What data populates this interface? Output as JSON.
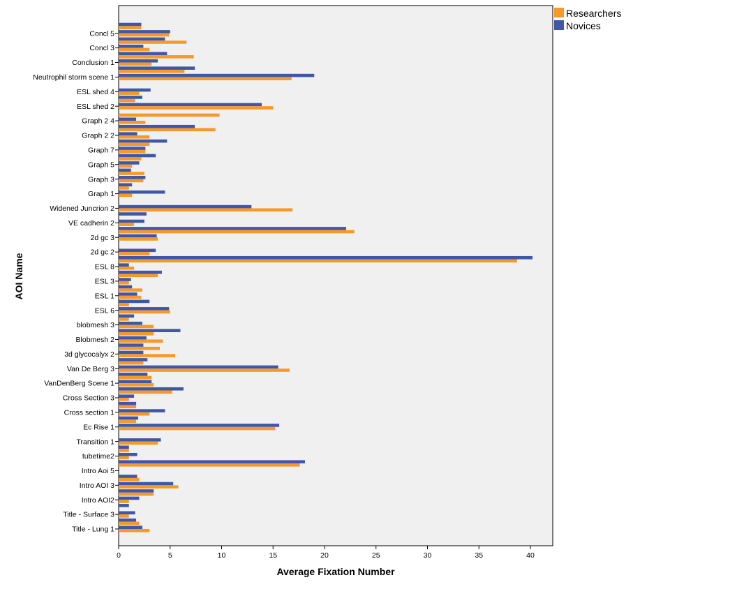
{
  "chart_data": {
    "type": "bar",
    "orientation": "horizontal",
    "xlabel": "Average Fixation Number",
    "ylabel": "AOI Name",
    "xlim": [
      0,
      42
    ],
    "xticks": [
      0,
      5,
      10,
      15,
      20,
      25,
      30,
      35,
      40
    ],
    "grid": false,
    "legend_position": "top-right",
    "series": [
      {
        "name": "Researchers",
        "color": "#F7982A"
      },
      {
        "name": "Novices",
        "color": "#3F57A6"
      }
    ],
    "rows": [
      {
        "label": "",
        "novices": 2.2,
        "researchers": 2.2
      },
      {
        "label": "Concl 5",
        "novices": 5.0,
        "researchers": 4.9
      },
      {
        "label": "",
        "novices": 4.5,
        "researchers": 6.6
      },
      {
        "label": "Concl 3",
        "novices": 2.4,
        "researchers": 3.0
      },
      {
        "label": "",
        "novices": 4.7,
        "researchers": 7.3
      },
      {
        "label": "Conclusion 1",
        "novices": 3.8,
        "researchers": 3.2
      },
      {
        "label": "",
        "novices": 7.4,
        "researchers": 6.4
      },
      {
        "label": "Neutrophil storm scene 1",
        "novices": 19.0,
        "researchers": 16.8
      },
      {
        "label": "",
        "novices": null,
        "researchers": null
      },
      {
        "label": "ESL shed 4",
        "novices": 3.1,
        "researchers": 2.0
      },
      {
        "label": "",
        "novices": 2.3,
        "researchers": 1.6
      },
      {
        "label": "ESL shed 2",
        "novices": 13.9,
        "researchers": 15.0
      },
      {
        "label": "",
        "novices": null,
        "researchers": 9.8
      },
      {
        "label": "Graph 2 4",
        "novices": 1.7,
        "researchers": 2.6
      },
      {
        "label": "",
        "novices": 7.4,
        "researchers": 9.4
      },
      {
        "label": "Graph 2 2",
        "novices": 1.8,
        "researchers": 3.0
      },
      {
        "label": "",
        "novices": 4.7,
        "researchers": 3.0
      },
      {
        "label": "Graph 7",
        "novices": 2.6,
        "researchers": 2.6
      },
      {
        "label": "",
        "novices": 3.6,
        "researchers": 2.2
      },
      {
        "label": "Graph 5",
        "novices": 2.0,
        "researchers": 1.3
      },
      {
        "label": "",
        "novices": 1.2,
        "researchers": 2.5
      },
      {
        "label": "Graph 3",
        "novices": 2.6,
        "researchers": 2.4
      },
      {
        "label": "",
        "novices": 1.3,
        "researchers": 1.0
      },
      {
        "label": "Graph 1",
        "novices": 4.5,
        "researchers": 1.3
      },
      {
        "label": "",
        "novices": null,
        "researchers": null
      },
      {
        "label": "Widened Juncrion 2",
        "novices": 12.9,
        "researchers": 16.9
      },
      {
        "label": "",
        "novices": 2.7,
        "researchers": null
      },
      {
        "label": "VE cadherin 2",
        "novices": 2.5,
        "researchers": 1.5
      },
      {
        "label": "",
        "novices": 22.1,
        "researchers": 22.9
      },
      {
        "label": "2d gc 3",
        "novices": 3.7,
        "researchers": 3.8
      },
      {
        "label": "",
        "novices": null,
        "researchers": null
      },
      {
        "label": "2d gc 2",
        "novices": 3.6,
        "researchers": 3.0
      },
      {
        "label": "",
        "novices": 40.2,
        "researchers": 38.7
      },
      {
        "label": "ESL 8",
        "novices": 1.0,
        "researchers": 1.5
      },
      {
        "label": "",
        "novices": 4.2,
        "researchers": 3.8
      },
      {
        "label": "ESL 3",
        "novices": 1.2,
        "researchers": 1.0
      },
      {
        "label": "",
        "novices": 1.3,
        "researchers": 2.3
      },
      {
        "label": "ESL 1",
        "novices": 1.8,
        "researchers": 2.2
      },
      {
        "label": "",
        "novices": 3.0,
        "researchers": 1.0
      },
      {
        "label": "ESL 6",
        "novices": 4.9,
        "researchers": 5.0
      },
      {
        "label": "",
        "novices": 1.5,
        "researchers": 1.0
      },
      {
        "label": "blobmesh 3",
        "novices": 2.3,
        "researchers": 3.4
      },
      {
        "label": "",
        "novices": 6.0,
        "researchers": 3.4
      },
      {
        "label": "Blobmesh 2",
        "novices": 2.7,
        "researchers": 4.3
      },
      {
        "label": "",
        "novices": 2.4,
        "researchers": 4.0
      },
      {
        "label": "3d glycocalyx 2",
        "novices": 2.4,
        "researchers": 5.5
      },
      {
        "label": "",
        "novices": 2.8,
        "researchers": 2.4
      },
      {
        "label": "Van De Berg 3",
        "novices": 15.5,
        "researchers": 16.6
      },
      {
        "label": "",
        "novices": 2.8,
        "researchers": 3.2
      },
      {
        "label": "VanDenBerg Scene 1",
        "novices": 3.2,
        "researchers": 3.4
      },
      {
        "label": "",
        "novices": 6.3,
        "researchers": 5.2
      },
      {
        "label": "Cross Section 3",
        "novices": 1.5,
        "researchers": 1.0
      },
      {
        "label": "",
        "novices": 1.7,
        "researchers": 1.7
      },
      {
        "label": "Cross section 1",
        "novices": 4.5,
        "researchers": 3.0
      },
      {
        "label": "",
        "novices": 1.9,
        "researchers": 1.7
      },
      {
        "label": "Ec Rise 1",
        "novices": 15.6,
        "researchers": 15.2
      },
      {
        "label": "",
        "novices": null,
        "researchers": null
      },
      {
        "label": "Transition 1",
        "novices": 4.1,
        "researchers": 3.8
      },
      {
        "label": "",
        "novices": 1.0,
        "researchers": 1.0
      },
      {
        "label": "tubetime2",
        "novices": 1.8,
        "researchers": 1.0
      },
      {
        "label": "",
        "novices": 18.1,
        "researchers": 17.6
      },
      {
        "label": "Intro Aoi 5",
        "novices": null,
        "researchers": null
      },
      {
        "label": "",
        "novices": 1.8,
        "researchers": 2.0
      },
      {
        "label": "Intro AOI 3",
        "novices": 5.3,
        "researchers": 5.8
      },
      {
        "label": "",
        "novices": 3.4,
        "researchers": 3.4
      },
      {
        "label": "Intro AOI2",
        "novices": 2.0,
        "researchers": 1.0
      },
      {
        "label": "",
        "novices": 1.0,
        "researchers": null
      },
      {
        "label": "Title - Surface 3",
        "novices": 1.6,
        "researchers": 1.0
      },
      {
        "label": "",
        "novices": 1.7,
        "researchers": 2.0
      },
      {
        "label": "Title - Lung 1",
        "novices": 2.3,
        "researchers": 3.0
      }
    ]
  }
}
